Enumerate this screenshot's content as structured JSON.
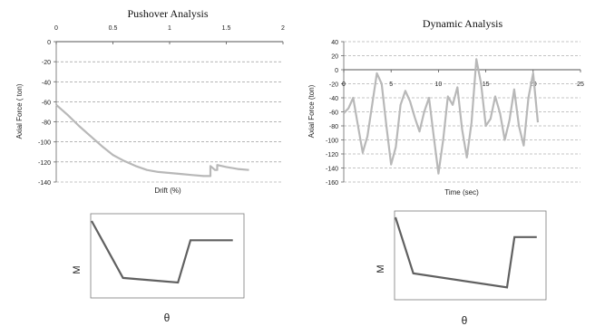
{
  "chart_data": [
    {
      "type": "line",
      "title": "Pushover Analysis",
      "xlabel": "Drift (%)",
      "ylabel": "Axial Force ( ton)",
      "xlim": [
        0,
        2
      ],
      "ylim": [
        -140,
        0
      ],
      "x_ticks": [
        "0",
        "0.5",
        "1",
        "1.5",
        "2"
      ],
      "y_ticks": [
        "0",
        "-20",
        "-40",
        "-60",
        "-80",
        "-100",
        "-120",
        "-140"
      ],
      "x_axis_position": "top",
      "grid": "horizontal dashed",
      "series": [
        {
          "color": "#b8b8b8",
          "x": [
            0,
            0.1,
            0.2,
            0.3,
            0.4,
            0.5,
            0.6,
            0.7,
            0.8,
            0.9,
            1.0,
            1.1,
            1.2,
            1.3,
            1.34,
            1.36,
            1.36,
            1.4,
            1.42,
            1.42,
            1.5,
            1.6,
            1.7
          ],
          "y": [
            -63,
            -73,
            -84,
            -94,
            -104,
            -113,
            -119,
            -124,
            -128,
            -130,
            -131,
            -132,
            -133,
            -134,
            -134,
            -134,
            -124,
            -128,
            -128,
            -123,
            -125,
            -127,
            -128
          ]
        }
      ]
    },
    {
      "type": "line",
      "title": "Dynamic Analysis",
      "xlabel": "Time (sec)",
      "ylabel": "Axial Force (ton)",
      "xlim": [
        0,
        25
      ],
      "ylim": [
        -160,
        40
      ],
      "x_ticks": [
        "0",
        "5",
        "10",
        "15",
        "20",
        "25"
      ],
      "y_ticks": [
        "40",
        "20",
        "0",
        "-20",
        "-40",
        "-60",
        "-80",
        "-100",
        "-120",
        "-140",
        "-160"
      ],
      "x_axis_position": "y=0",
      "grid": "horizontal dashed",
      "series": [
        {
          "color": "#b8b8b8",
          "x": [
            0,
            0.5,
            1,
            1.5,
            2,
            2.5,
            3,
            3.5,
            4,
            4.5,
            5,
            5.5,
            6,
            6.5,
            7,
            7.5,
            8,
            8.5,
            9,
            9.5,
            10,
            10.5,
            11,
            11.5,
            12,
            12.5,
            13,
            13.5,
            14,
            14.5,
            15,
            15.5,
            16,
            16.5,
            17,
            17.5,
            18,
            18.5,
            19,
            19.5,
            20,
            20.5
          ],
          "y": [
            -62,
            -55,
            -40,
            -80,
            -118,
            -95,
            -50,
            -5,
            -20,
            -80,
            -135,
            -110,
            -50,
            -30,
            -45,
            -68,
            -88,
            -60,
            -40,
            -95,
            -148,
            -100,
            -38,
            -50,
            -25,
            -85,
            -125,
            -75,
            15,
            -20,
            -80,
            -70,
            -38,
            -62,
            -100,
            -72,
            -28,
            -80,
            -108,
            -40,
            -5,
            -75
          ]
        }
      ]
    },
    {
      "type": "line",
      "xlabel": "θ",
      "ylabel": "M",
      "series": [
        {
          "color": "#606060",
          "x": [
            0,
            0.2,
            0.55,
            0.63,
            0.9
          ],
          "y": [
            0,
            0.74,
            0.8,
            0.25,
            0.25
          ]
        }
      ]
    },
    {
      "type": "line",
      "xlabel": "θ",
      "ylabel": "M",
      "series": [
        {
          "color": "#606060",
          "x": [
            0,
            0.12,
            0.75,
            0.8,
            0.95
          ],
          "y": [
            0,
            0.68,
            0.85,
            0.24,
            0.24
          ]
        }
      ]
    }
  ]
}
